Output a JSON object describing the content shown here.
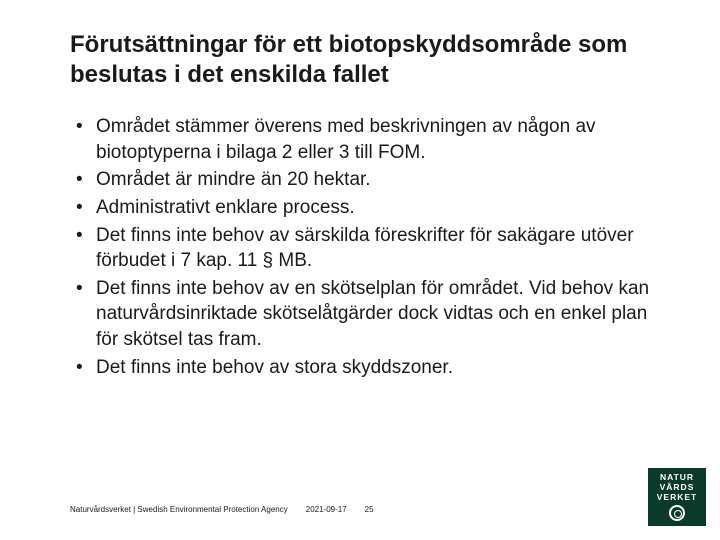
{
  "title": "Förutsättningar för ett biotopskydds­område som beslutas i det enskilda fallet",
  "bullets": [
    "Området stämmer överens med beskrivningen av någon av biotoptyperna i bilaga 2 eller 3 till FOM.",
    "Området är mindre än 20 hektar.",
    "Administrativt enklare process.",
    "Det finns inte behov av särskilda föreskrifter för sakägare utöver förbudet i 7 kap. 11 § MB.",
    "Det finns inte behov av en skötselplan för området. Vid behov kan naturvårdsinriktade skötselåtgärder dock vidtas och en enkel plan för skötsel tas fram.",
    "Det finns inte behov av stora skyddszoner."
  ],
  "footer": {
    "org": "Naturvårdsverket | Swedish Environmental Protection Agency",
    "date": "2021-09-17",
    "page": "25"
  },
  "logo": {
    "line1": "NATUR",
    "line2": "VÅRDS",
    "line3": "VERKET",
    "bg": "#0a3a2a"
  }
}
